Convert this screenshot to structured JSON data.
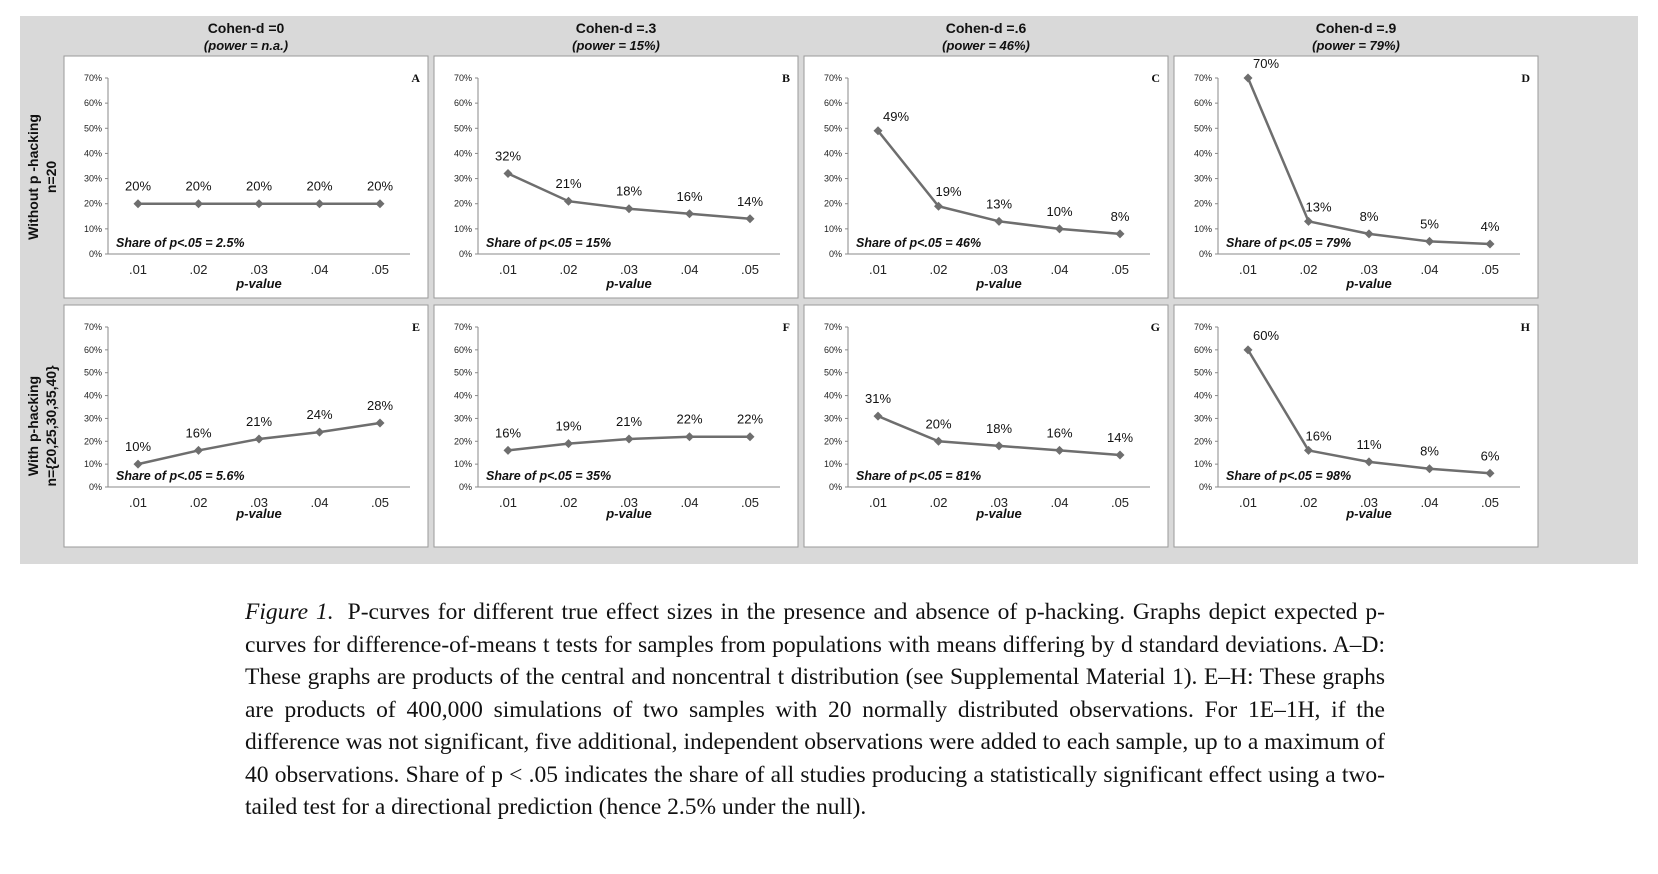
{
  "chart_data": {
    "type": "line",
    "columns": [
      {
        "title": "Cohen-d =0",
        "subtitle": "(power = n.a.)"
      },
      {
        "title": "Cohen-d =.3",
        "subtitle": "(power = 15%)"
      },
      {
        "title": "Cohen-d =.6",
        "subtitle": "(power = 46%)"
      },
      {
        "title": "Cohen-d =.9",
        "subtitle": "(power = 79%)"
      }
    ],
    "rows": [
      {
        "label_line1": "Without  p -hacking",
        "label_line2": "n=20"
      },
      {
        "label_line1": "With p-hacking",
        "label_line2": "n={20,25,30,35,40}"
      }
    ],
    "x": [
      ".01",
      ".02",
      ".03",
      ".04",
      ".05"
    ],
    "xlabel": "p-value",
    "y_ticks": [
      "0%",
      "10%",
      "20%",
      "30%",
      "40%",
      "50%",
      "60%",
      "70%"
    ],
    "ylim": [
      0,
      70
    ],
    "panels": [
      {
        "letter": "A",
        "values": [
          20,
          20,
          20,
          20,
          20
        ],
        "labels": [
          "20%",
          "20%",
          "20%",
          "20%",
          "20%"
        ],
        "share": "Share of p<.05 = 2.5%"
      },
      {
        "letter": "B",
        "values": [
          32,
          21,
          18,
          16,
          14
        ],
        "labels": [
          "32%",
          "21%",
          "18%",
          "16%",
          "14%"
        ],
        "share": "Share of p<.05 = 15%"
      },
      {
        "letter": "C",
        "values": [
          49,
          19,
          13,
          10,
          8
        ],
        "labels": [
          "49%",
          "19%",
          "13%",
          "10%",
          "8%"
        ],
        "share": "Share of p<.05 = 46%"
      },
      {
        "letter": "D",
        "values": [
          70,
          13,
          8,
          5,
          4
        ],
        "labels": [
          "70%",
          "13%",
          "8%",
          "5%",
          "4%"
        ],
        "share": "Share of p<.05 = 79%"
      },
      {
        "letter": "E",
        "values": [
          10,
          16,
          21,
          24,
          28
        ],
        "labels": [
          "10%",
          "16%",
          "21%",
          "24%",
          "28%"
        ],
        "share": "Share of p<.05 = 5.6%"
      },
      {
        "letter": "F",
        "values": [
          16,
          19,
          21,
          22,
          22
        ],
        "labels": [
          "16%",
          "19%",
          "21%",
          "22%",
          "22%"
        ],
        "share": "Share of p<.05 = 35%"
      },
      {
        "letter": "G",
        "values": [
          31,
          20,
          18,
          16,
          14
        ],
        "labels": [
          "31%",
          "20%",
          "18%",
          "16%",
          "14%"
        ],
        "share": "Share of p<.05 = 81%"
      },
      {
        "letter": "H",
        "values": [
          60,
          16,
          11,
          8,
          6
        ],
        "labels": [
          "60%",
          "16%",
          "11%",
          "8%",
          "6%"
        ],
        "share": "Share of p<.05 = 98%"
      }
    ],
    "colors": {
      "line": "#6e6e6e",
      "panel_bg": "#d9d9d9",
      "plot_bg": "#ffffff"
    }
  },
  "caption": {
    "label": "Figure 1.",
    "text": "P-curves for different true effect sizes in the presence and absence of p-hacking. Graphs depict expected p-curves for difference-of-means t tests for samples from populations with means differing by d standard deviations. A–D: These graphs are products of the central and noncentral t distribution (see Supplemental Material 1). E–H: These graphs are products of 400,000 simulations of two samples with 20 normally distributed observations. For 1E–1H, if the difference was not significant, five additional, independent observations were added to each sample, up to a maximum of 40 observations. Share of p < .05 indicates the share of all studies producing a statistically significant effect using a two-tailed test for a directional prediction (hence 2.5% under the null)."
  }
}
